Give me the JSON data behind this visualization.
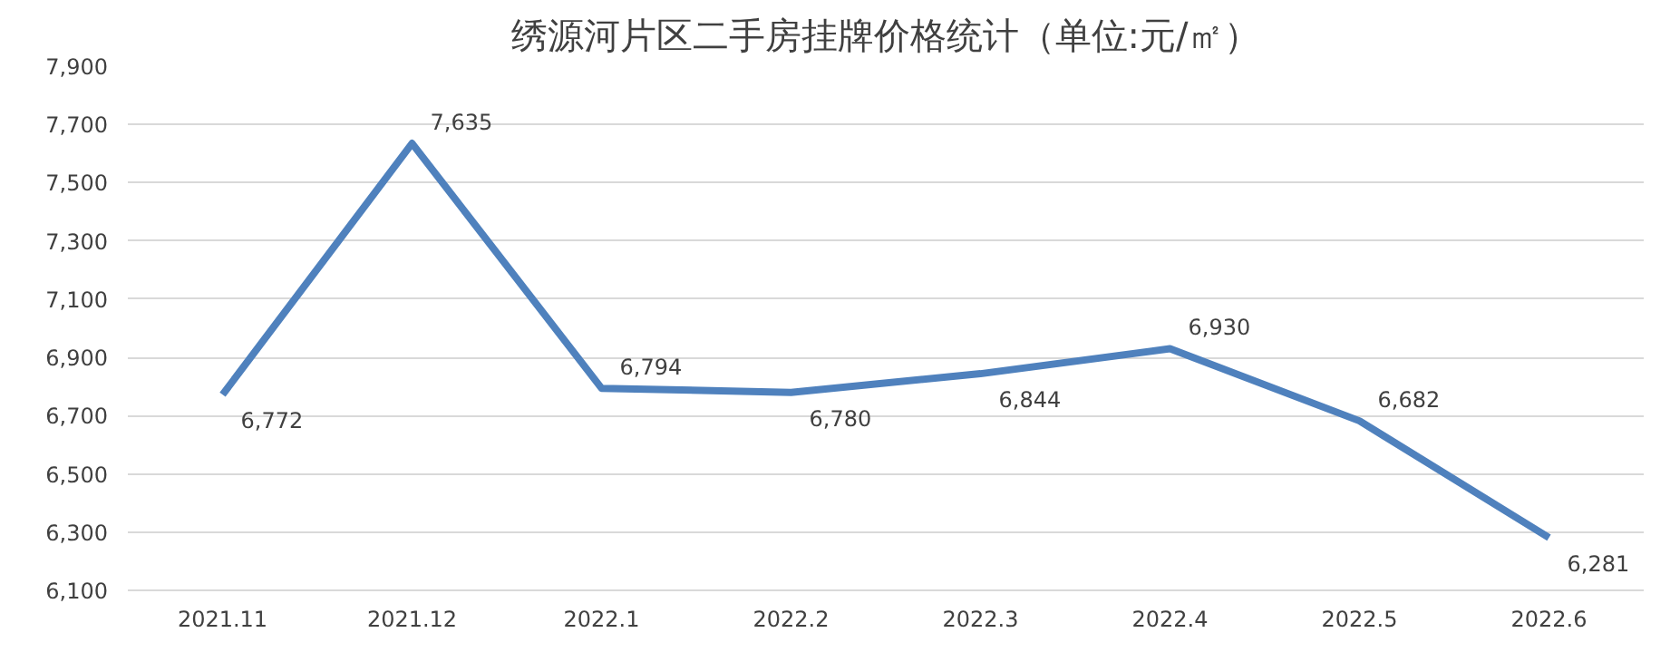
{
  "chart_data": {
    "type": "line",
    "title": "绣源河片区二手房挂牌价格统计（单位:元/㎡）",
    "categories": [
      "2021.11",
      "2021.12",
      "2022.1",
      "2022.2",
      "2022.3",
      "2022.4",
      "2022.5",
      "2022.6"
    ],
    "series": [
      {
        "color": "#4f81bd",
        "values": [
          6772,
          7635,
          6794,
          6780,
          6844,
          6930,
          6682,
          6281
        ]
      }
    ],
    "value_labels": [
      "6,772",
      "7,635",
      "6,794",
      "6,780",
      "6,844",
      "6,930",
      "6,682",
      "6,281"
    ],
    "ylim": [
      6100,
      7900
    ],
    "yticks": [
      {
        "value": 6100,
        "label": "6,100"
      },
      {
        "value": 6300,
        "label": "6,300"
      },
      {
        "value": 6500,
        "label": "6,500"
      },
      {
        "value": 6700,
        "label": "6,700"
      },
      {
        "value": 6900,
        "label": "6,900"
      },
      {
        "value": 7100,
        "label": "7,100"
      },
      {
        "value": 7300,
        "label": "7,300"
      },
      {
        "value": 7500,
        "label": "7,500"
      },
      {
        "value": 7700,
        "label": "7,700"
      },
      {
        "value": 7900,
        "label": "7,900"
      }
    ],
    "grid": "y",
    "marker": "none",
    "line_style": "solid"
  }
}
